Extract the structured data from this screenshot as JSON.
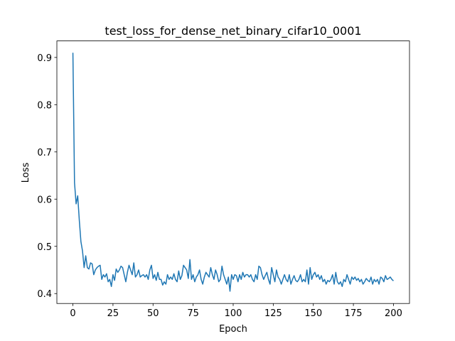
{
  "chart_data": {
    "type": "line",
    "title": "test_loss_for_dense_net_binary_cifar10_0001",
    "x_label": "Epoch",
    "y_label": "Loss",
    "xlim": [
      -10,
      210
    ],
    "ylim": [
      0.379,
      0.935
    ],
    "xticks": [
      0,
      25,
      50,
      75,
      100,
      125,
      150,
      175,
      200
    ],
    "yticks": [
      0.4,
      0.5,
      0.6,
      0.7,
      0.8,
      0.9
    ],
    "x": [
      0,
      1,
      2,
      3,
      4,
      5,
      6,
      7,
      8,
      9,
      10,
      11,
      12,
      13,
      14,
      15,
      16,
      17,
      18,
      19,
      20,
      21,
      22,
      23,
      24,
      25,
      26,
      27,
      28,
      29,
      30,
      31,
      32,
      33,
      34,
      35,
      36,
      37,
      38,
      39,
      40,
      41,
      42,
      43,
      44,
      45,
      46,
      47,
      48,
      49,
      50,
      51,
      52,
      53,
      54,
      55,
      56,
      57,
      58,
      59,
      60,
      61,
      62,
      63,
      64,
      65,
      66,
      67,
      68,
      69,
      70,
      71,
      72,
      73,
      74,
      75,
      76,
      77,
      78,
      79,
      80,
      81,
      82,
      83,
      84,
      85,
      86,
      87,
      88,
      89,
      90,
      91,
      92,
      93,
      94,
      95,
      96,
      97,
      98,
      99,
      100,
      101,
      102,
      103,
      104,
      105,
      106,
      107,
      108,
      109,
      110,
      111,
      112,
      113,
      114,
      115,
      116,
      117,
      118,
      119,
      120,
      121,
      122,
      123,
      124,
      125,
      126,
      127,
      128,
      129,
      130,
      131,
      132,
      133,
      134,
      135,
      136,
      137,
      138,
      139,
      140,
      141,
      142,
      143,
      144,
      145,
      146,
      147,
      148,
      149,
      150,
      151,
      152,
      153,
      154,
      155,
      156,
      157,
      158,
      159,
      160,
      161,
      162,
      163,
      164,
      165,
      166,
      167,
      168,
      169,
      170,
      171,
      172,
      173,
      174,
      175,
      176,
      177,
      178,
      179,
      180,
      181,
      182,
      183,
      184,
      185,
      186,
      187,
      188,
      189,
      190,
      191,
      192,
      193,
      194,
      195,
      196,
      197,
      198,
      199,
      200
    ],
    "series": [
      {
        "name": "test_loss",
        "color": "#1f77b4",
        "values": [
          0.91,
          0.635,
          0.59,
          0.607,
          0.555,
          0.51,
          0.49,
          0.455,
          0.48,
          0.455,
          0.452,
          0.465,
          0.463,
          0.44,
          0.45,
          0.455,
          0.458,
          0.46,
          0.43,
          0.44,
          0.435,
          0.442,
          0.425,
          0.43,
          0.415,
          0.44,
          0.428,
          0.452,
          0.445,
          0.45,
          0.458,
          0.455,
          0.44,
          0.425,
          0.445,
          0.46,
          0.45,
          0.44,
          0.465,
          0.435,
          0.44,
          0.45,
          0.435,
          0.438,
          0.44,
          0.435,
          0.44,
          0.43,
          0.45,
          0.46,
          0.432,
          0.44,
          0.428,
          0.445,
          0.43,
          0.43,
          0.418,
          0.425,
          0.42,
          0.44,
          0.43,
          0.435,
          0.43,
          0.442,
          0.43,
          0.425,
          0.448,
          0.43,
          0.438,
          0.46,
          0.455,
          0.45,
          0.432,
          0.472,
          0.43,
          0.44,
          0.425,
          0.435,
          0.44,
          0.45,
          0.43,
          0.42,
          0.435,
          0.445,
          0.44,
          0.435,
          0.455,
          0.44,
          0.43,
          0.45,
          0.44,
          0.425,
          0.43,
          0.458,
          0.44,
          0.43,
          0.42,
          0.435,
          0.405,
          0.44,
          0.43,
          0.44,
          0.438,
          0.425,
          0.44,
          0.43,
          0.445,
          0.435,
          0.44,
          0.44,
          0.435,
          0.44,
          0.43,
          0.425,
          0.44,
          0.43,
          0.458,
          0.455,
          0.44,
          0.43,
          0.438,
          0.445,
          0.43,
          0.42,
          0.455,
          0.44,
          0.425,
          0.45,
          0.435,
          0.43,
          0.42,
          0.43,
          0.44,
          0.43,
          0.425,
          0.44,
          0.42,
          0.43,
          0.438,
          0.428,
          0.425,
          0.43,
          0.44,
          0.425,
          0.43,
          0.425,
          0.45,
          0.42,
          0.455,
          0.43,
          0.44,
          0.445,
          0.435,
          0.44,
          0.43,
          0.438,
          0.425,
          0.43,
          0.42,
          0.428,
          0.425,
          0.43,
          0.44,
          0.42,
          0.445,
          0.425,
          0.42,
          0.425,
          0.415,
          0.43,
          0.425,
          0.44,
          0.43,
          0.42,
          0.435,
          0.43,
          0.435,
          0.428,
          0.432,
          0.425,
          0.43,
          0.42,
          0.425,
          0.432,
          0.428,
          0.425,
          0.435,
          0.42,
          0.43,
          0.425,
          0.43,
          0.42,
          0.435,
          0.432,
          0.425,
          0.438,
          0.43,
          0.432,
          0.435,
          0.43,
          0.427
        ]
      }
    ]
  }
}
